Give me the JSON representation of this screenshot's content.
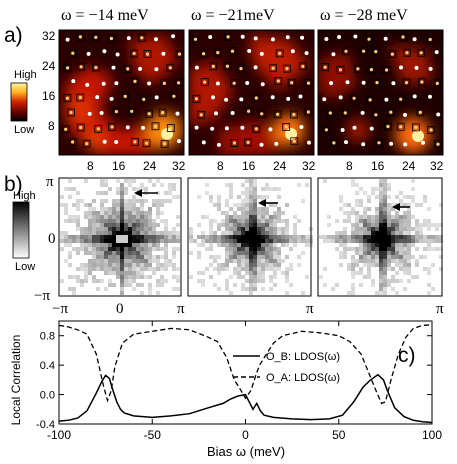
{
  "panels": {
    "a": {
      "label": "a)",
      "titles": [
        "ω = −14 meV",
        "ω = −21meV",
        "ω = −28 meV"
      ],
      "y_ticks": [
        "32",
        "24",
        "16",
        "8"
      ],
      "x_ticks": [
        "8",
        "16",
        "24",
        "32"
      ],
      "colorbar": {
        "high": "High",
        "low": "Low",
        "colors": [
          "#fff8a0",
          "#ffb020",
          "#d02000",
          "#600000",
          "#000000"
        ]
      }
    },
    "b": {
      "label": "b)",
      "y_ticks": [
        "π",
        "0",
        "−π"
      ],
      "x_ticks": [
        "−π",
        "0",
        "π",
        "π",
        "π"
      ],
      "colorbar": {
        "high": "High",
        "low": "Low",
        "colors": [
          "#000000",
          "#808080",
          "#ffffff"
        ]
      }
    },
    "c": {
      "label": "c)"
    }
  },
  "chart_data": {
    "type": "line",
    "xlabel": "Bias ω (meV)",
    "ylabel": "Local Correlation",
    "xlim": [
      -100,
      100
    ],
    "ylim": [
      -0.4,
      1.0
    ],
    "x_ticks": [
      "-100",
      "-50",
      "0",
      "50",
      "100"
    ],
    "y_ticks": [
      "0.8",
      "0.4",
      "0.0",
      "-0.4"
    ],
    "legend": "center-right",
    "series": [
      {
        "name": "O_B: LDOS(ω)",
        "style": "solid",
        "x": [
          -100,
          -95,
          -90,
          -85,
          -80,
          -77,
          -75,
          -73,
          -71,
          -69,
          -67,
          -65,
          -60,
          -50,
          -40,
          -30,
          -20,
          -12,
          -8,
          -4,
          0,
          2,
          4,
          6,
          8,
          10,
          15,
          25,
          35,
          45,
          52,
          58,
          63,
          67,
          71,
          74,
          76,
          80,
          85,
          90,
          95,
          100
        ],
        "y": [
          -0.36,
          -0.35,
          -0.32,
          -0.22,
          0.02,
          0.18,
          0.26,
          0.22,
          0.05,
          -0.1,
          -0.2,
          -0.25,
          -0.29,
          -0.31,
          -0.29,
          -0.26,
          -0.18,
          -0.12,
          -0.06,
          -0.02,
          0.0,
          -0.1,
          -0.2,
          -0.12,
          -0.22,
          -0.28,
          -0.31,
          -0.33,
          -0.34,
          -0.33,
          -0.28,
          -0.1,
          0.1,
          0.2,
          0.27,
          0.2,
          0.06,
          -0.18,
          -0.3,
          -0.35,
          -0.37,
          -0.38
        ]
      },
      {
        "name": "O_A: LDOS(ω)",
        "style": "dashed",
        "x": [
          -100,
          -95,
          -90,
          -85,
          -80,
          -76,
          -74,
          -72,
          -70,
          -66,
          -60,
          -50,
          -40,
          -30,
          -20,
          -15,
          -10,
          -6,
          -3,
          0,
          3,
          6,
          8,
          10,
          15,
          20,
          30,
          40,
          50,
          56,
          62,
          66,
          70,
          73,
          75,
          78,
          82,
          86,
          90,
          95,
          100
        ],
        "y": [
          0.94,
          0.92,
          0.88,
          0.82,
          0.55,
          0.1,
          -0.08,
          0.05,
          0.38,
          0.7,
          0.82,
          0.86,
          0.9,
          0.88,
          0.78,
          0.72,
          0.5,
          0.2,
          0.08,
          -0.05,
          0.06,
          0.3,
          0.42,
          0.5,
          0.7,
          0.8,
          0.86,
          0.84,
          0.8,
          0.72,
          0.55,
          0.3,
          0.05,
          -0.12,
          -0.1,
          0.2,
          0.55,
          0.78,
          0.9,
          0.94,
          0.95
        ]
      }
    ]
  }
}
